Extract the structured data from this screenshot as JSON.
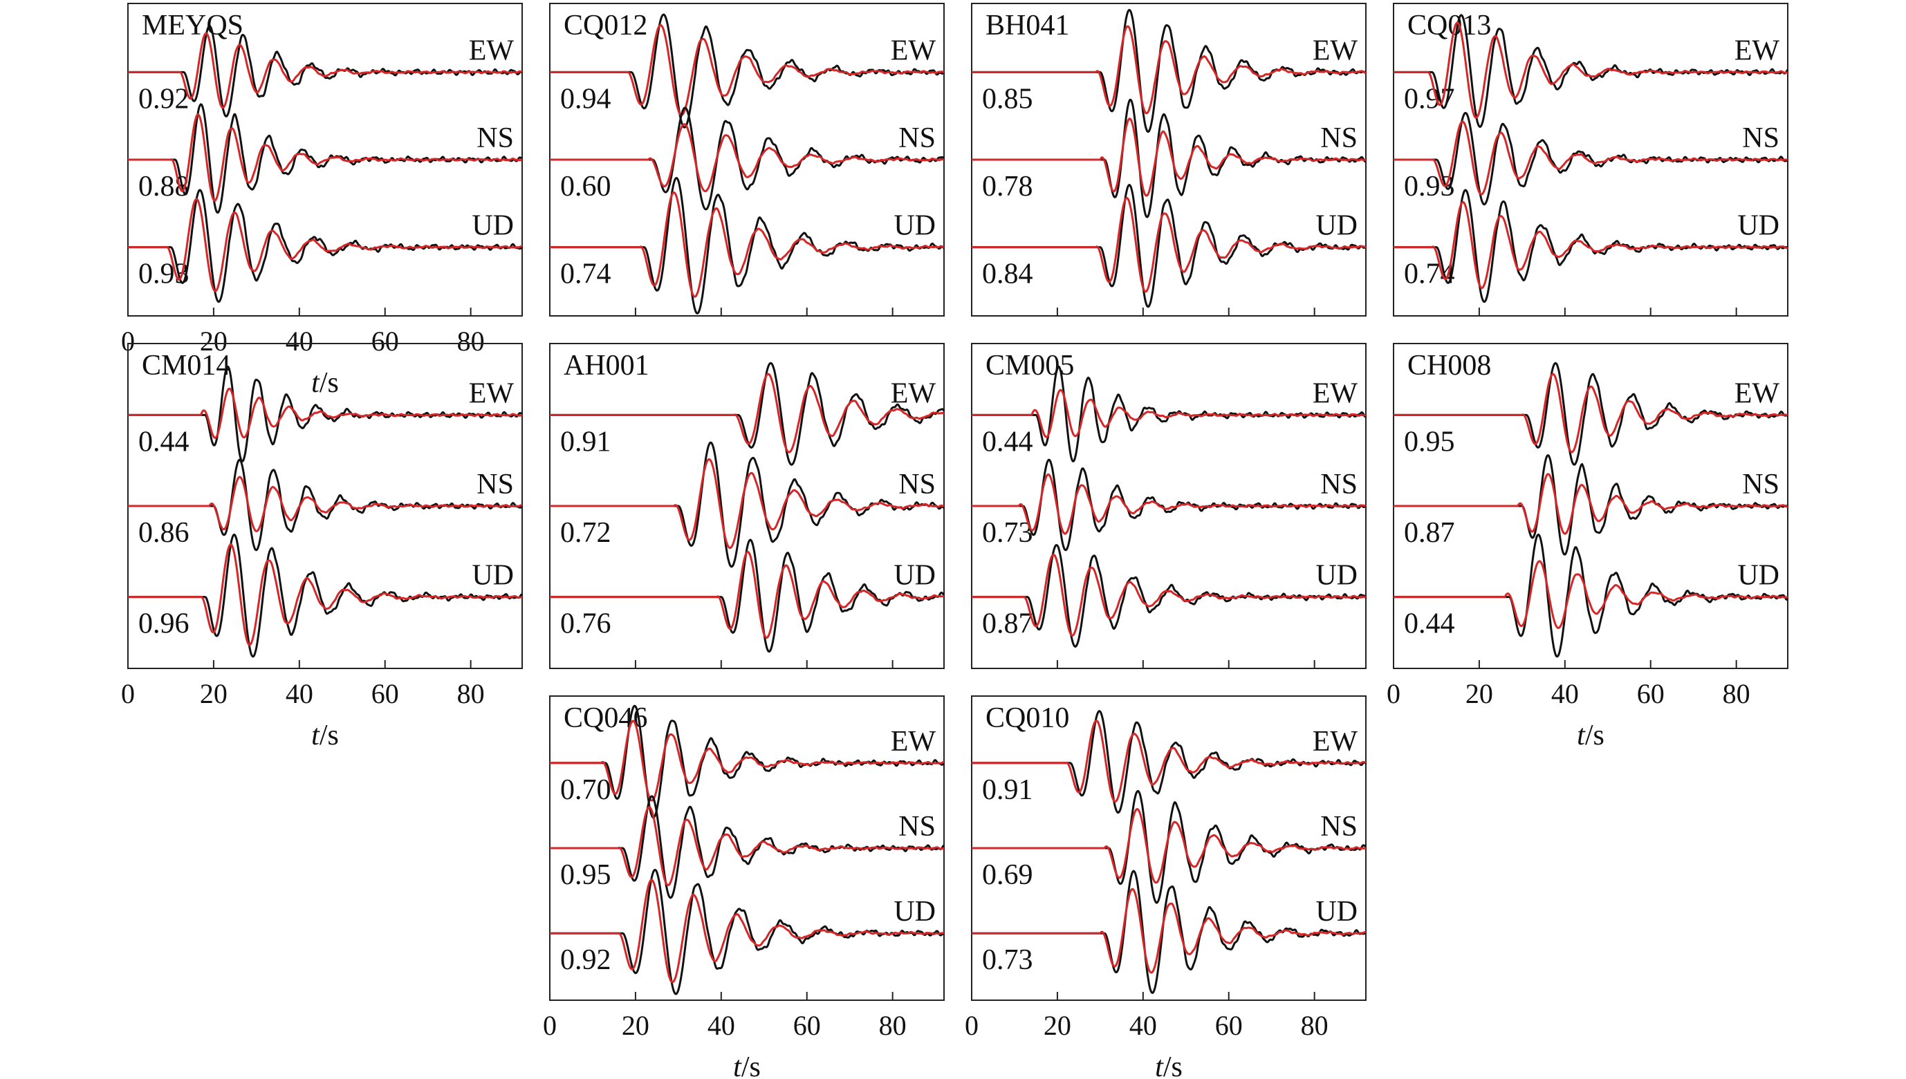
{
  "chart_data": {
    "type": "line",
    "x_unit_label": {
      "var": "t",
      "sep": "/",
      "unit": "s"
    },
    "xlim": [
      0,
      92
    ],
    "x_ticks": [
      "0",
      "20",
      "40",
      "60",
      "80"
    ],
    "colors": {
      "observed": "#111111",
      "synthetic": "#d62728"
    },
    "panels": [
      {
        "id": "p1",
        "station": "MEYQS",
        "x_axis_shown": true,
        "components": [
          {
            "name": "EW",
            "cc": "0.92",
            "onset": 13,
            "amp": 1.0,
            "period": 8,
            "r": 0.9
          },
          {
            "name": "NS",
            "cc": "0.88",
            "onset": 11,
            "amp": 1.2,
            "period": 8,
            "r": 0.85
          },
          {
            "name": "UD",
            "cc": "0.93",
            "onset": 10,
            "amp": 1.1,
            "period": 9,
            "r": 0.9
          }
        ]
      },
      {
        "id": "p2",
        "station": "CQ012",
        "x_axis_shown": false,
        "components": [
          {
            "name": "EW",
            "cc": "0.94",
            "onset": 19,
            "amp": 1.0,
            "period": 10,
            "r": 0.85
          },
          {
            "name": "NS",
            "cc": "0.60",
            "onset": 24,
            "amp": 0.9,
            "period": 10,
            "r": 0.6
          },
          {
            "name": "UD",
            "cc": "0.74",
            "onset": 22,
            "amp": 1.2,
            "period": 10,
            "r": 0.8
          }
        ]
      },
      {
        "id": "p3",
        "station": "BH041",
        "x_axis_shown": false,
        "components": [
          {
            "name": "EW",
            "cc": "0.85",
            "onset": 30,
            "amp": 1.2,
            "period": 9,
            "r": 0.7
          },
          {
            "name": "NS",
            "cc": "0.78",
            "onset": 31,
            "amp": 1.3,
            "period": 8,
            "r": 0.6
          },
          {
            "name": "UD",
            "cc": "0.84",
            "onset": 30,
            "amp": 1.2,
            "period": 9,
            "r": 0.8
          }
        ]
      },
      {
        "id": "p4",
        "station": "CQ013",
        "x_axis_shown": false,
        "components": [
          {
            "name": "EW",
            "cc": "0.97",
            "onset": 9,
            "amp": 1.1,
            "period": 9,
            "r": 0.95
          },
          {
            "name": "NS",
            "cc": "0.93",
            "onset": 10,
            "amp": 0.9,
            "period": 9,
            "r": 0.85
          },
          {
            "name": "UD",
            "cc": "0.74",
            "onset": 10,
            "amp": 1.1,
            "period": 9,
            "r": 0.8
          }
        ]
      },
      {
        "id": "p5",
        "station": "CM014",
        "x_axis_shown": true,
        "components": [
          {
            "name": "EW",
            "cc": "0.44",
            "onset": 18,
            "amp": 1.2,
            "period": 7,
            "r": 0.35
          },
          {
            "name": "NS",
            "cc": "0.86",
            "onset": 20,
            "amp": 1.0,
            "period": 8,
            "r": 0.5
          },
          {
            "name": "UD",
            "cc": "0.96",
            "onset": 18,
            "amp": 1.2,
            "period": 9,
            "r": 0.9
          }
        ]
      },
      {
        "id": "p6",
        "station": "AH001",
        "x_axis_shown": false,
        "components": [
          {
            "name": "EW",
            "cc": "0.91",
            "onset": 44,
            "amp": 0.9,
            "period": 10,
            "r": 0.8
          },
          {
            "name": "NS",
            "cc": "0.72",
            "onset": 30,
            "amp": 1.1,
            "period": 10,
            "r": 0.7
          },
          {
            "name": "UD",
            "cc": "0.76",
            "onset": 40,
            "amp": 1.1,
            "period": 9,
            "r": 0.8
          }
        ]
      },
      {
        "id": "p7",
        "station": "CM005",
        "x_axis_shown": false,
        "components": [
          {
            "name": "EW",
            "cc": "0.44",
            "onset": 15,
            "amp": 1.2,
            "period": 7,
            "r": 0.3
          },
          {
            "name": "NS",
            "cc": "0.73",
            "onset": 12,
            "amp": 1.0,
            "period": 8,
            "r": 0.6
          },
          {
            "name": "UD",
            "cc": "0.87",
            "onset": 13,
            "amp": 1.0,
            "period": 9,
            "r": 0.85
          }
        ]
      },
      {
        "id": "p8",
        "station": "CH008",
        "x_axis_shown": true,
        "components": [
          {
            "name": "EW",
            "cc": "0.95",
            "onset": 31,
            "amp": 1.0,
            "period": 9,
            "r": 0.8
          },
          {
            "name": "NS",
            "cc": "0.87",
            "onset": 30,
            "amp": 1.1,
            "period": 8,
            "r": 0.5
          },
          {
            "name": "UD",
            "cc": "0.44",
            "onset": 27,
            "amp": 1.2,
            "period": 9,
            "r": 0.4
          }
        ]
      },
      {
        "id": "p9",
        "station": "CQ046",
        "x_axis_shown": true,
        "components": [
          {
            "name": "EW",
            "cc": "0.70",
            "onset": 13,
            "amp": 1.1,
            "period": 9,
            "r": 0.7
          },
          {
            "name": "NS",
            "cc": "0.95",
            "onset": 17,
            "amp": 1.0,
            "period": 9,
            "r": 0.8
          },
          {
            "name": "UD",
            "cc": "0.92",
            "onset": 17,
            "amp": 1.1,
            "period": 10,
            "r": 0.9
          }
        ]
      },
      {
        "id": "p10",
        "station": "CQ010",
        "x_axis_shown": true,
        "components": [
          {
            "name": "EW",
            "cc": "0.91",
            "onset": 23,
            "amp": 1.0,
            "period": 9,
            "r": 0.85
          },
          {
            "name": "NS",
            "cc": "0.69",
            "onset": 32,
            "amp": 1.1,
            "period": 9,
            "r": 0.6
          },
          {
            "name": "UD",
            "cc": "0.73",
            "onset": 31,
            "amp": 1.2,
            "period": 9,
            "r": 0.65
          }
        ]
      }
    ]
  }
}
